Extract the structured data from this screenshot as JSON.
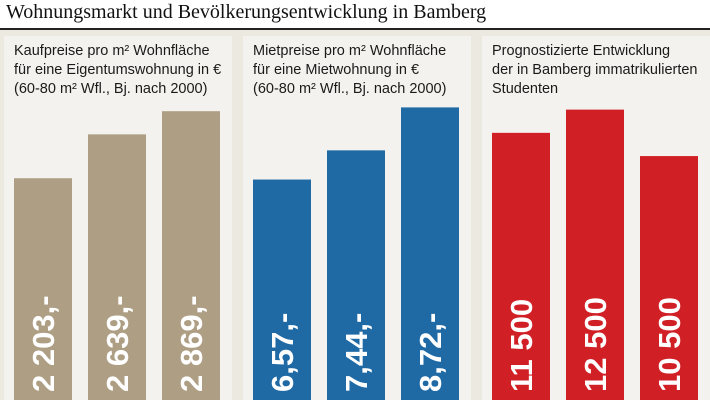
{
  "header": {
    "title": "Wohnungsmarkt und Bevölkerungsentwicklung in Bamberg"
  },
  "chart_data": [
    {
      "type": "bar",
      "title_lines": [
        "Kaufpreise pro m² Wohnfläche",
        "für eine Eigentumswohnung in €",
        "(60-80 m² Wfl., Bj. nach 2000)"
      ],
      "values": [
        2203,
        2639,
        2869
      ],
      "value_labels": [
        "2 203,-",
        "2 639,-",
        "2 869,-"
      ],
      "color": "#ad9e84",
      "ylim": [
        0,
        3000
      ]
    },
    {
      "type": "bar",
      "title_lines": [
        "Mietpreise pro m² Wohnfläche",
        "für eine Mietwohnung in €",
        "(60-80 m² Wfl., Bj. nach 2000)"
      ],
      "values": [
        6.57,
        7.44,
        8.72
      ],
      "value_labels": [
        "6,57,-",
        "7,44,-",
        "8,72,-"
      ],
      "color": "#1f6aa5",
      "ylim": [
        0,
        9.0
      ]
    },
    {
      "type": "bar",
      "title_lines": [
        "Prognostizierte Entwicklung",
        "der in Bamberg immatrikulierten",
        "Studenten"
      ],
      "values": [
        11500,
        12500,
        10500
      ],
      "value_labels": [
        "11 500",
        "12 500",
        "10 500"
      ],
      "color": "#d11f26",
      "ylim": [
        0,
        13000
      ]
    }
  ]
}
